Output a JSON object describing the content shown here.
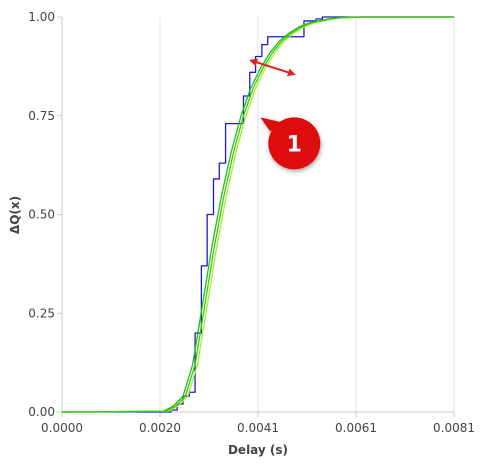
{
  "chart_data": {
    "type": "line",
    "xlabel": "Delay (s)",
    "ylabel": "ΔQ(x)",
    "xlim": [
      0,
      0.0081
    ],
    "ylim": [
      0,
      1
    ],
    "x_ticks": [
      "0.0000",
      "0.0020",
      "0.0041",
      "0.0061",
      "0.0081"
    ],
    "y_ticks": [
      "0.00",
      "0.25",
      "0.50",
      "0.75",
      "1.00"
    ],
    "grid": "vertical",
    "legend": "none",
    "series": [
      {
        "style": "step",
        "color": "#1a1acc",
        "x": [
          0,
          0.00225,
          0.00238,
          0.0025,
          0.00263,
          0.00275,
          0.00288,
          0.003,
          0.00313,
          0.00325,
          0.00338,
          0.0035,
          0.00363,
          0.00375,
          0.00388,
          0.004,
          0.00413,
          0.00425,
          0.00438,
          0.0045,
          0.00463,
          0.00475,
          0.00488,
          0.005,
          0.00513,
          0.00525,
          0.00538,
          0.0055,
          0.00563,
          0.00575,
          0.00588,
          0.006,
          0.0081
        ],
        "y": [
          0,
          0.005,
          0.02,
          0.04,
          0.05,
          0.2,
          0.37,
          0.5,
          0.59,
          0.63,
          0.73,
          0.73,
          0.73,
          0.8,
          0.86,
          0.9,
          0.93,
          0.95,
          0.95,
          0.95,
          0.95,
          0.95,
          0.95,
          0.99,
          0.99,
          0.995,
          1.0,
          1.0,
          1.0,
          1.0,
          1.0,
          1.0,
          1.0
        ]
      },
      {
        "style": "line",
        "color": "#22bb22",
        "x": [
          0,
          0.0021,
          0.0023,
          0.0025,
          0.0027,
          0.0029,
          0.0031,
          0.0033,
          0.0035,
          0.0037,
          0.0039,
          0.0041,
          0.0043,
          0.0045,
          0.0047,
          0.0049,
          0.0051,
          0.0053,
          0.0055,
          0.0057,
          0.0059,
          0.0061,
          0.0065,
          0.0081
        ],
        "y": [
          0,
          0.002,
          0.015,
          0.04,
          0.12,
          0.27,
          0.42,
          0.55,
          0.66,
          0.75,
          0.82,
          0.87,
          0.91,
          0.94,
          0.96,
          0.975,
          0.985,
          0.99,
          0.995,
          0.998,
          0.999,
          1.0,
          1.0,
          1.0
        ]
      },
      {
        "style": "line",
        "color": "#aaee22",
        "x": [
          0,
          0.0022,
          0.0024,
          0.0026,
          0.0028,
          0.003,
          0.0032,
          0.0034,
          0.0036,
          0.0038,
          0.004,
          0.0042,
          0.0044,
          0.0046,
          0.0048,
          0.005,
          0.0052,
          0.0054,
          0.0056,
          0.0058,
          0.006,
          0.0062,
          0.0066,
          0.0081
        ],
        "y": [
          0,
          0.002,
          0.015,
          0.04,
          0.12,
          0.27,
          0.42,
          0.55,
          0.66,
          0.75,
          0.82,
          0.87,
          0.91,
          0.94,
          0.96,
          0.975,
          0.985,
          0.99,
          0.995,
          0.998,
          0.999,
          1.0,
          1.0,
          1.0
        ]
      },
      {
        "style": "line",
        "color": "#33cc11",
        "x": [
          0,
          0.00215,
          0.00235,
          0.00255,
          0.00275,
          0.00295,
          0.00315,
          0.00335,
          0.00355,
          0.00375,
          0.00395,
          0.00415,
          0.00435,
          0.00455,
          0.00475,
          0.00495,
          0.00515,
          0.00535,
          0.00555,
          0.00575,
          0.00595,
          0.00615,
          0.00655,
          0.0081
        ],
        "y": [
          0,
          0.002,
          0.015,
          0.04,
          0.12,
          0.27,
          0.42,
          0.55,
          0.66,
          0.75,
          0.82,
          0.87,
          0.91,
          0.94,
          0.96,
          0.975,
          0.985,
          0.99,
          0.995,
          0.998,
          0.999,
          1.0,
          1.0,
          1.0
        ]
      }
    ],
    "annotations": [
      {
        "kind": "arrow",
        "color": "#dd2222",
        "from": [
          0.0039,
          0.89
        ],
        "to": [
          0.0048,
          0.855
        ]
      },
      {
        "kind": "callout",
        "label": "1",
        "color": "#dd1111",
        "at": [
          0.0048,
          0.68
        ]
      }
    ]
  }
}
